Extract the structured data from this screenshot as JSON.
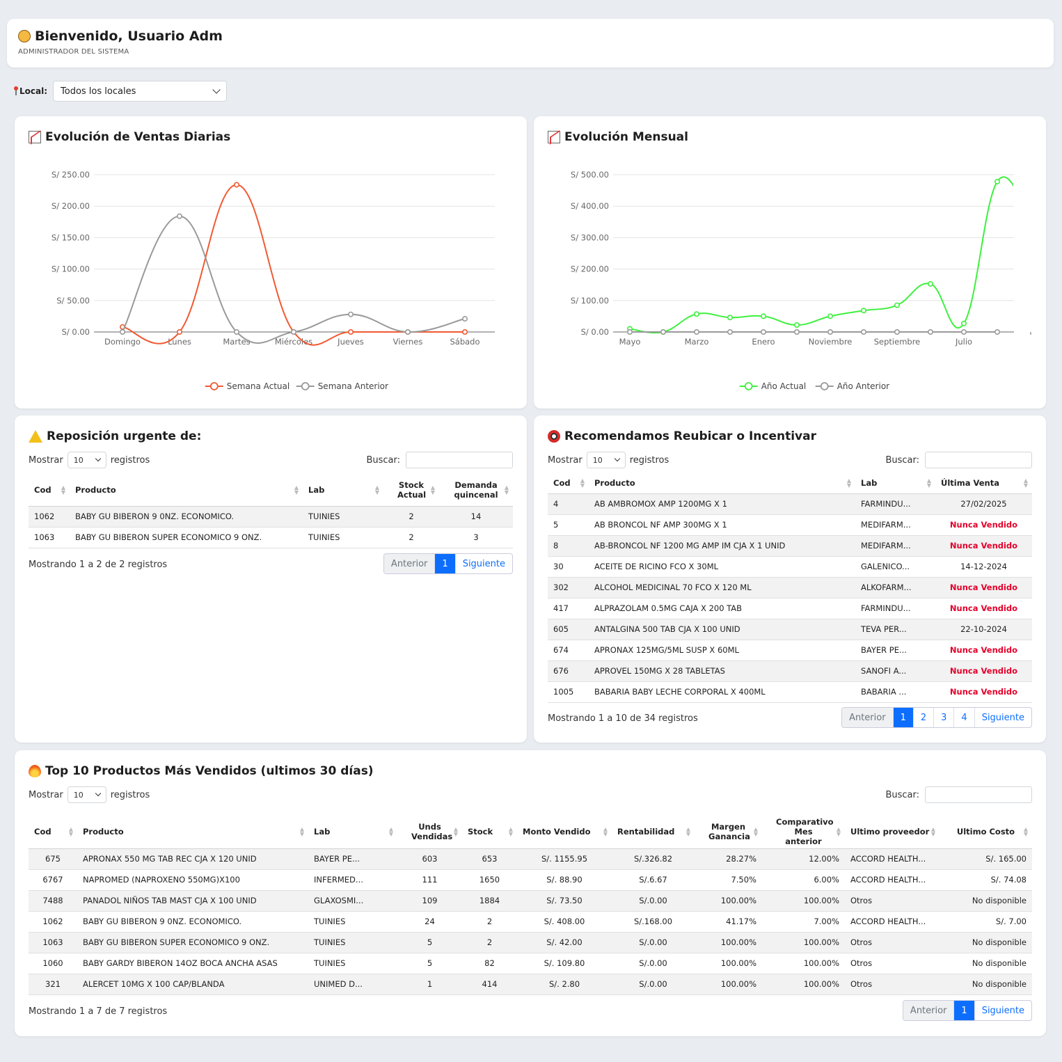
{
  "header": {
    "title": "Bienvenido, Usuario Adm",
    "subtitle": "ADMINISTRADOR DEL SISTEMA"
  },
  "filter": {
    "label": "Local:",
    "value": "Todos los locales"
  },
  "charts": {
    "daily_title": "Evolución de Ventas Diarias",
    "monthly_title": "Evolución Mensual"
  },
  "chart_data": [
    {
      "type": "line",
      "title": "Evolución de Ventas Diarias",
      "categories": [
        "Domingo",
        "Lunes",
        "Martes",
        "Miércoles",
        "Jueves",
        "Viernes",
        "Sábado"
      ],
      "ylim": [
        0,
        250
      ],
      "yticks": [
        "S/ 0.00",
        "S/ 50.00",
        "S/ 100.00",
        "S/ 150.00",
        "S/ 200.00",
        "S/ 250.00"
      ],
      "series": [
        {
          "name": "Semana Actual",
          "color": "#f05a32",
          "values": [
            8,
            0,
            234,
            0,
            0,
            0,
            0
          ]
        },
        {
          "name": "Semana Anterior",
          "color": "#999999",
          "values": [
            0,
            184,
            0,
            0,
            28,
            0,
            21
          ]
        }
      ],
      "legend": "bottom"
    },
    {
      "type": "line",
      "title": "Evolución Mensual",
      "categories": [
        "Mayo",
        "",
        "Marzo",
        "",
        "Enero",
        "",
        "Noviembre",
        "",
        "Septiembre",
        "",
        "Julio",
        "",
        ""
      ],
      "ylim": [
        0,
        500
      ],
      "yticks": [
        "S/ 0.00",
        "S/ 100.00",
        "S/ 200.00",
        "S/ 300.00",
        "S/ 400.00",
        "S/ 500.00"
      ],
      "series": [
        {
          "name": "Año Actual",
          "color": "#3ef03e",
          "values": [
            10,
            0,
            57,
            46,
            50,
            22,
            50,
            68,
            85,
            153,
            27,
            478,
            350
          ]
        },
        {
          "name": "Año Anterior",
          "color": "#999999",
          "values": [
            0,
            0,
            0,
            0,
            0,
            0,
            0,
            0,
            0,
            0,
            0,
            0,
            null
          ]
        }
      ],
      "legend": "bottom"
    }
  ],
  "controls": {
    "show": "Mostrar",
    "entries": "10",
    "records": "registros",
    "search": "Buscar:"
  },
  "pager": {
    "prev": "Anterior",
    "next": "Siguiente"
  },
  "urgent": {
    "title": "Reposición urgente de:",
    "headers": [
      "Cod",
      "Producto",
      "Lab",
      "Stock Actual",
      "Demanda quincenal"
    ],
    "rows": [
      [
        "1062",
        "BABY GU BIBERON 9 0NZ. ECONOMICO.",
        "TUINIES",
        "2",
        "14"
      ],
      [
        "1063",
        "BABY GU BIBERON SUPER ECONOMICO 9 ONZ.",
        "TUINIES",
        "2",
        "3"
      ]
    ],
    "info": "Mostrando 1 a 2 de 2 registros",
    "pages": [
      "1"
    ]
  },
  "relocate": {
    "title": "Recomendamos Reubicar o Incentivar",
    "headers": [
      "Cod",
      "Producto",
      "Lab",
      "Última Venta"
    ],
    "rows": [
      [
        "4",
        "AB AMBROMOX AMP 1200MG X 1",
        "FARMINDU...",
        "27/02/2025"
      ],
      [
        "5",
        "AB BRONCOL NF AMP 300MG X 1",
        "MEDIFARM...",
        "Nunca Vendido"
      ],
      [
        "8",
        "AB-BRONCOL NF 1200 MG AMP IM CJA X 1 UNID",
        "MEDIFARM...",
        "Nunca Vendido"
      ],
      [
        "30",
        "ACEITE DE RICINO FCO X 30ML",
        "GALENICO...",
        "14-12-2024"
      ],
      [
        "302",
        "ALCOHOL MEDICINAL 70 FCO X 120 ML",
        "ALKOFARM...",
        "Nunca Vendido"
      ],
      [
        "417",
        "ALPRAZOLAM 0.5MG CAJA X 200 TAB",
        "FARMINDU...",
        "Nunca Vendido"
      ],
      [
        "605",
        "ANTALGINA 500 TAB CJA X 100 UNID",
        "TEVA PER...",
        "22-10-2024"
      ],
      [
        "674",
        "APRONAX 125MG/5ML SUSP X 60ML",
        "BAYER PE...",
        "Nunca Vendido"
      ],
      [
        "676",
        "APROVEL 150MG X 28 TABLETAS",
        "SANOFI A...",
        "Nunca Vendido"
      ],
      [
        "1005",
        "BABARIA BABY LECHE CORPORAL X 400ML",
        "BABARIA ...",
        "Nunca Vendido"
      ]
    ],
    "info": "Mostrando 1 a 10 de 34 registros",
    "pages": [
      "1",
      "2",
      "3",
      "4"
    ]
  },
  "top": {
    "title": "Top 10 Productos Más Vendidos (ultimos 30 días)",
    "headers": [
      "Cod",
      "Producto",
      "Lab",
      "Unds Vendidas",
      "Stock",
      "Monto Vendido",
      "Rentabilidad",
      "Margen Ganancia",
      "Comparativo Mes anterior",
      "Ultimo proveedor",
      "Ultimo Costo"
    ],
    "rows": [
      [
        "675",
        "APRONAX 550 MG TAB REC CJA X 120 UNID",
        "BAYER PE...",
        "603",
        "653",
        "S/. 1155.95",
        "S/.326.82",
        "28.27%",
        "12.00%",
        "ACCORD HEALTH...",
        "S/. 165.00"
      ],
      [
        "6767",
        "NAPROMED (NAPROXENO 550MG)X100",
        "INFERMED...",
        "111",
        "1650",
        "S/. 88.90",
        "S/.6.67",
        "7.50%",
        "6.00%",
        "ACCORD HEALTH...",
        "S/. 74.08"
      ],
      [
        "7488",
        "PANADOL NIÑOS TAB MAST CJA X 100 UNID",
        "GLAXOSMI...",
        "109",
        "1884",
        "S/. 73.50",
        "S/.0.00",
        "100.00%",
        "100.00%",
        "Otros",
        "No disponible"
      ],
      [
        "1062",
        "BABY GU BIBERON 9 0NZ. ECONOMICO.",
        "TUINIES",
        "24",
        "2",
        "S/. 408.00",
        "S/.168.00",
        "41.17%",
        "7.00%",
        "ACCORD HEALTH...",
        "S/. 7.00"
      ],
      [
        "1063",
        "BABY GU BIBERON SUPER ECONOMICO 9 ONZ.",
        "TUINIES",
        "5",
        "2",
        "S/. 42.00",
        "S/.0.00",
        "100.00%",
        "100.00%",
        "Otros",
        "No disponible"
      ],
      [
        "1060",
        "BABY GARDY BIBERON 14OZ BOCA ANCHA ASAS",
        "TUINIES",
        "5",
        "82",
        "S/. 109.80",
        "S/.0.00",
        "100.00%",
        "100.00%",
        "Otros",
        "No disponible"
      ],
      [
        "321",
        "ALERCET 10MG X 100 CAP/BLANDA",
        "UNIMED D...",
        "1",
        "414",
        "S/. 2.80",
        "S/.0.00",
        "100.00%",
        "100.00%",
        "Otros",
        "No disponible"
      ]
    ],
    "info": "Mostrando 1 a 7 de 7 registros",
    "pages": [
      "1"
    ]
  }
}
